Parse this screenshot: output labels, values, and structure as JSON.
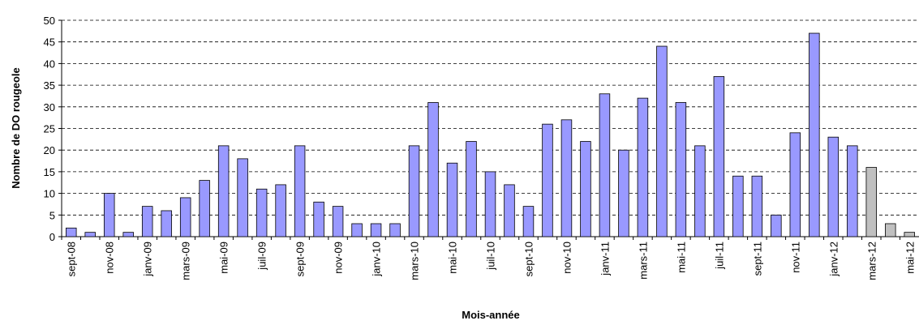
{
  "chart_data": {
    "type": "bar",
    "x_label": "Mois-année",
    "y_label": "Nombre de DO rougeole",
    "categories": [
      "sept-08",
      null,
      "nov-08",
      null,
      "janv-09",
      null,
      "mars-09",
      null,
      "mai-09",
      null,
      "juil-09",
      null,
      "sept-09",
      null,
      "nov-09",
      null,
      "janv-10",
      null,
      "mars-10",
      null,
      "mai-10",
      null,
      "juil-10",
      null,
      "sept-10",
      null,
      "nov-10",
      null,
      "janv-11",
      null,
      "mars-11",
      null,
      "mai-11",
      null,
      "juil-11",
      null,
      "sept-11",
      null,
      "nov-11",
      null,
      "janv-12",
      null,
      "mars-12",
      null,
      "mai-12"
    ],
    "values": [
      2,
      1,
      10,
      1,
      7,
      6,
      9,
      13,
      21,
      18,
      11,
      12,
      21,
      8,
      7,
      3,
      3,
      3,
      21,
      31,
      17,
      22,
      15,
      12,
      7,
      26,
      27,
      22,
      33,
      20,
      32,
      44,
      31,
      21,
      37,
      14,
      14,
      5,
      24,
      47,
      23,
      21,
      16,
      3,
      1
    ],
    "colors": [
      "#9999ff",
      "#9999ff",
      "#9999ff",
      "#9999ff",
      "#9999ff",
      "#9999ff",
      "#9999ff",
      "#9999ff",
      "#9999ff",
      "#9999ff",
      "#9999ff",
      "#9999ff",
      "#9999ff",
      "#9999ff",
      "#9999ff",
      "#9999ff",
      "#9999ff",
      "#9999ff",
      "#9999ff",
      "#9999ff",
      "#9999ff",
      "#9999ff",
      "#9999ff",
      "#9999ff",
      "#9999ff",
      "#9999ff",
      "#9999ff",
      "#9999ff",
      "#9999ff",
      "#9999ff",
      "#9999ff",
      "#9999ff",
      "#9999ff",
      "#9999ff",
      "#9999ff",
      "#9999ff",
      "#9999ff",
      "#9999ff",
      "#9999ff",
      "#9999ff",
      "#9999ff",
      "#9999ff",
      "#c0c0c0",
      "#c0c0c0",
      "#c0c0c0"
    ],
    "ylim": [
      0,
      50
    ],
    "yticks": [
      0,
      5,
      10,
      15,
      20,
      25,
      30,
      35,
      40,
      45,
      50
    ],
    "grid": true
  }
}
